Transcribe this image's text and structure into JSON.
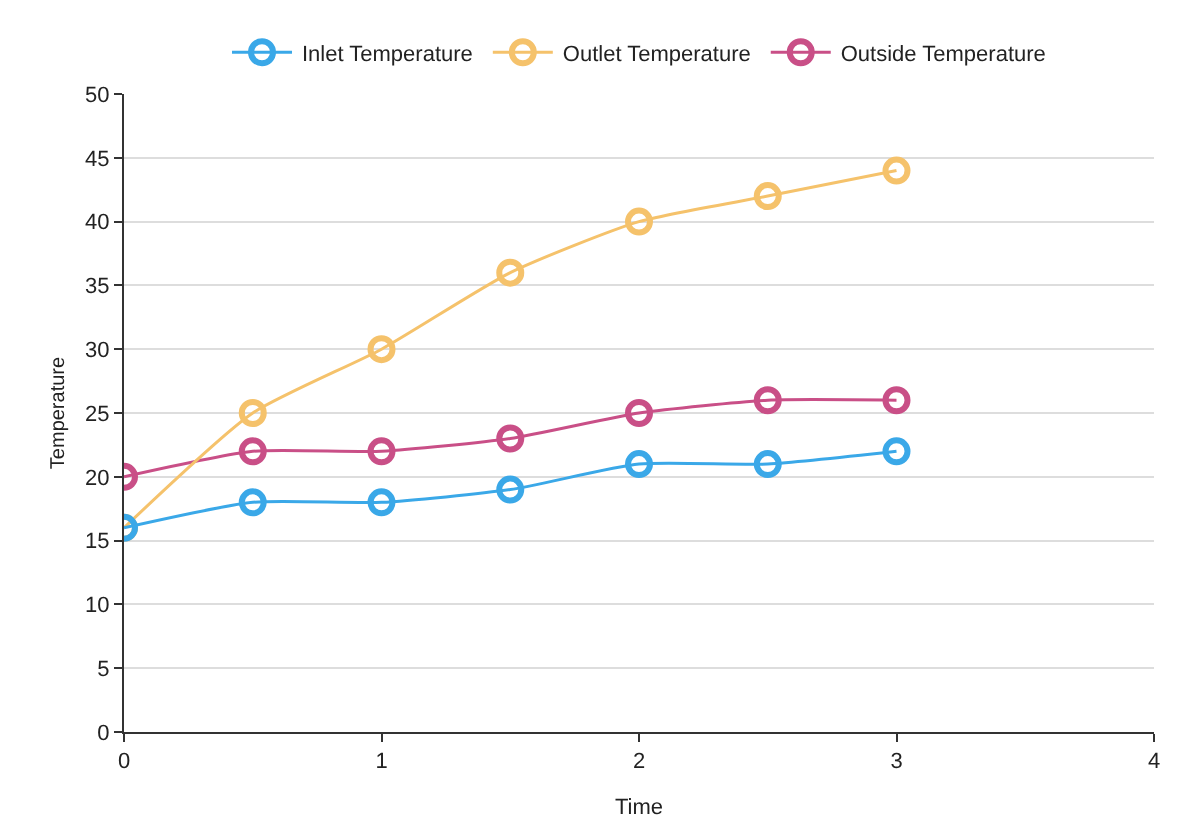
{
  "chart_data": {
    "type": "line",
    "xlabel": "Time",
    "ylabel": "Temperature",
    "x": [
      0,
      0.5,
      1,
      1.5,
      2,
      2.5,
      3
    ],
    "series": [
      {
        "name": "Inlet Temperature",
        "color": "#3aa8e8",
        "values": [
          16,
          18,
          18,
          19,
          21,
          21,
          22
        ]
      },
      {
        "name": "Outlet Temperature",
        "color": "#f5c26b",
        "values": [
          16,
          25,
          30,
          36,
          40,
          42,
          44
        ]
      },
      {
        "name": "Outside Temperature",
        "color": "#c94f87",
        "values": [
          20,
          22,
          22,
          23,
          25,
          26,
          26
        ]
      }
    ],
    "xlim": [
      0,
      4
    ],
    "xticks": [
      0,
      1,
      2,
      3,
      4
    ],
    "ylim": [
      0,
      50
    ],
    "yticks": [
      0,
      5,
      10,
      15,
      20,
      25,
      30,
      35,
      40,
      45,
      50
    ],
    "grid": "y",
    "legend": "top",
    "marker": "circle",
    "line_style": "solid"
  }
}
